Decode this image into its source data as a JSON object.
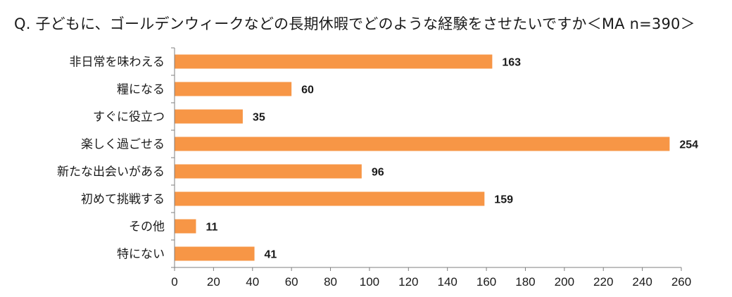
{
  "chart_data": {
    "type": "bar",
    "orientation": "horizontal",
    "title": "Q. 子どもに、ゴールデンウィークなどの長期休暇でどのような経験をさせたいですか＜MA n=390＞",
    "categories": [
      "非日常を味わえる",
      "糧になる",
      "すぐに役立つ",
      "楽しく過ごせる",
      "新たな出会いがある",
      "初めて挑戦する",
      "その他",
      "特にない"
    ],
    "values": [
      163,
      60,
      35,
      254,
      96,
      159,
      11,
      41
    ],
    "xlim": [
      0,
      260
    ],
    "xticks": [
      0,
      20,
      40,
      60,
      80,
      100,
      120,
      140,
      160,
      180,
      200,
      220,
      240,
      260
    ],
    "xlabel": "",
    "ylabel": "",
    "grid": false,
    "legend": "none",
    "bar_color": "#F79646",
    "axis_color": "#7f7f7f"
  }
}
